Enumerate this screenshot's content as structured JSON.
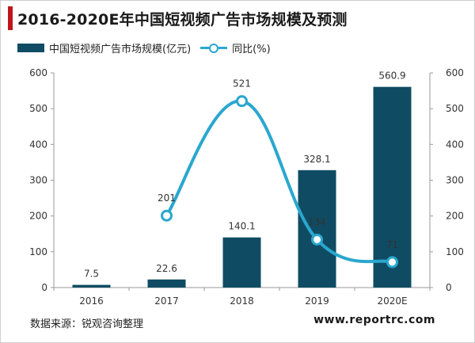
{
  "title": "2016-2020E年中国短视频广告市场规模及预测",
  "legend": {
    "bar_label": "中国短视频广告市场规模(亿元)",
    "line_label": "同比(%)"
  },
  "source": "数据来源：锐观咨询整理",
  "website": "www.reportrc.com",
  "colors": {
    "bar": "#0f4c63",
    "line": "#2aa7cf",
    "accent": "#c0151b"
  },
  "chart_data": {
    "type": "bar",
    "categories": [
      "2016",
      "2017",
      "2018",
      "2019",
      "2020E"
    ],
    "series": [
      {
        "name": "中国短视频广告市场规模(亿元)",
        "type": "bar",
        "axis": "left",
        "values": [
          7.5,
          22.6,
          140.1,
          328.1,
          560.9
        ]
      },
      {
        "name": "同比(%)",
        "type": "line",
        "axis": "right",
        "x": [
          "2017",
          "2018",
          "2019",
          "2020E"
        ],
        "values": [
          201,
          521,
          134,
          71
        ]
      }
    ],
    "ylim": [
      0,
      600
    ],
    "y2lim": [
      0,
      600
    ],
    "yticks": [
      0,
      100,
      200,
      300,
      400,
      500,
      600
    ],
    "legend_position": "top-left",
    "grid": false
  }
}
